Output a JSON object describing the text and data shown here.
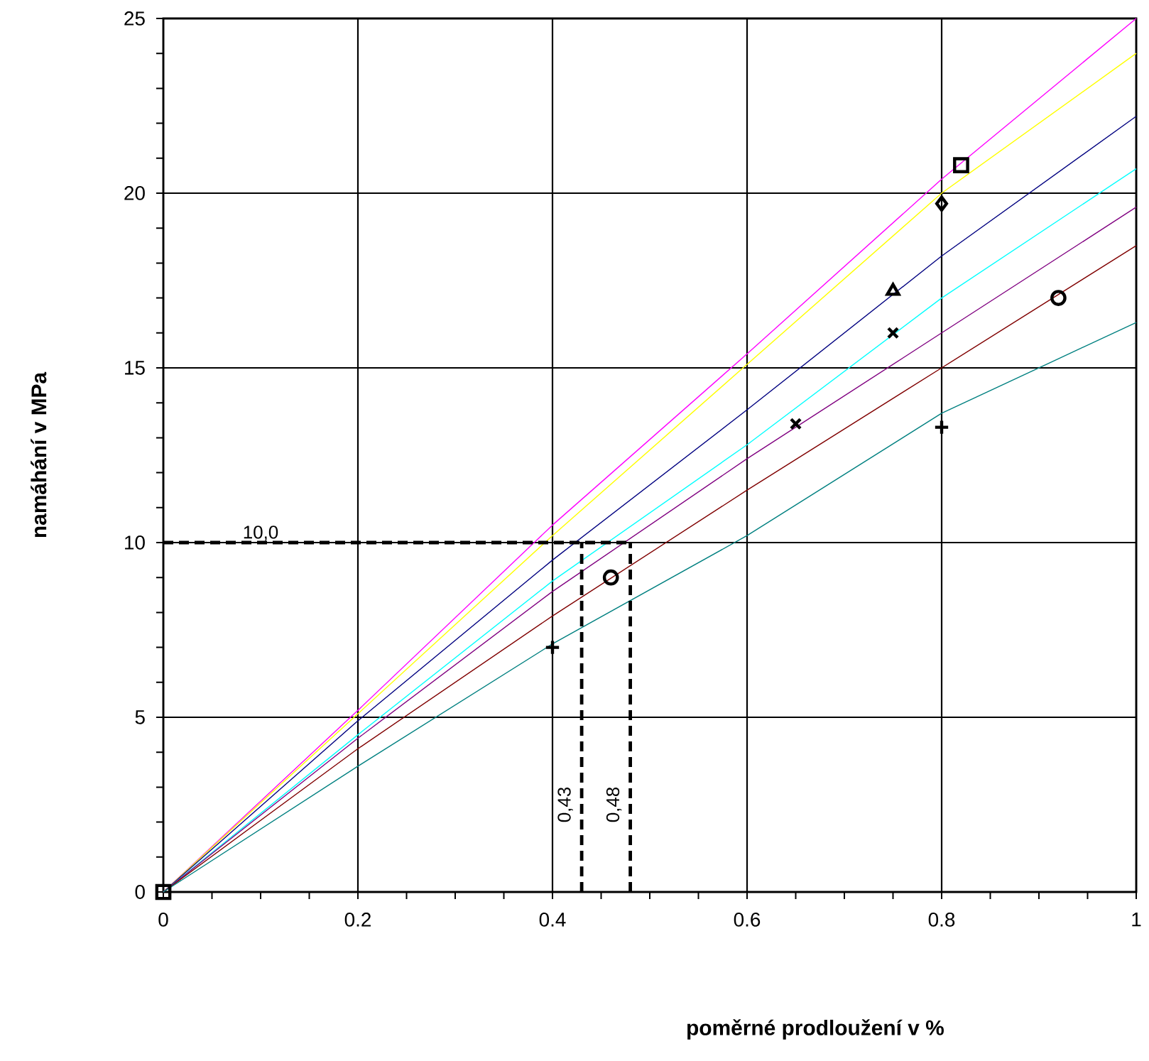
{
  "chart_data": {
    "type": "line",
    "xlabel": "poměrné prodloužení v %",
    "ylabel": "namáhání  v MPa",
    "xlim": [
      0,
      1
    ],
    "ylim": [
      0,
      25
    ],
    "xticks": [
      0,
      0.2,
      0.4,
      0.6,
      0.8,
      1
    ],
    "yticks": [
      0,
      5,
      10,
      15,
      20,
      25
    ],
    "grid": true,
    "series": [
      {
        "color": "#ff00ff",
        "x": [
          0,
          0.2,
          0.4,
          0.6,
          0.8,
          1
        ],
        "values": [
          0,
          5.2,
          10.5,
          15.4,
          20.4,
          25.0
        ]
      },
      {
        "color": "#ffff00",
        "x": [
          0,
          0.2,
          0.4,
          0.6,
          0.8,
          1
        ],
        "values": [
          0,
          5.1,
          10.2,
          15.1,
          20.0,
          24.0
        ]
      },
      {
        "color": "#000080",
        "x": [
          0,
          0.2,
          0.4,
          0.6,
          0.8,
          1
        ],
        "values": [
          0,
          4.9,
          9.5,
          13.8,
          18.2,
          22.2
        ]
      },
      {
        "color": "#00ffff",
        "x": [
          0,
          0.2,
          0.4,
          0.6,
          0.8,
          1
        ],
        "values": [
          0,
          4.5,
          8.9,
          12.8,
          17.0,
          20.7
        ]
      },
      {
        "color": "#800080",
        "x": [
          0,
          0.2,
          0.4,
          0.6,
          0.8,
          1
        ],
        "values": [
          0,
          4.4,
          8.6,
          12.4,
          16.0,
          19.6
        ]
      },
      {
        "color": "#800000",
        "x": [
          0,
          0.2,
          0.4,
          0.6,
          0.8,
          1
        ],
        "values": [
          0,
          4.1,
          7.9,
          11.5,
          15.0,
          18.5
        ]
      },
      {
        "color": "#008080",
        "x": [
          0,
          0.2,
          0.4,
          0.6,
          0.8,
          1
        ],
        "values": [
          0,
          3.6,
          7.1,
          10.2,
          13.7,
          16.3
        ]
      },
      {
        "type": "scatter",
        "marker": "plus",
        "color": "#000000",
        "x": [
          0.4,
          0.8
        ],
        "values": [
          7.0,
          13.3
        ]
      },
      {
        "type": "scatter",
        "marker": "circle",
        "color": "#000000",
        "x": [
          0.46,
          0.92
        ],
        "values": [
          9.0,
          17.0
        ]
      },
      {
        "type": "scatter",
        "marker": "cross",
        "color": "#000000",
        "x": [
          0.65,
          0.75
        ],
        "values": [
          13.4,
          16.0
        ]
      },
      {
        "type": "scatter",
        "marker": "triangle",
        "color": "#000000",
        "x": [
          0.75
        ],
        "values": [
          17.2
        ]
      },
      {
        "type": "scatter",
        "marker": "diamond",
        "color": "#000000",
        "x": [
          0.8
        ],
        "values": [
          19.7
        ]
      },
      {
        "type": "scatter",
        "marker": "square",
        "color": "#000000",
        "x": [
          0.82,
          0
        ],
        "values": [
          20.8,
          0
        ]
      }
    ],
    "ref_lines": [
      {
        "axis": "y",
        "value": 10,
        "label": "10,0",
        "color": "#000000",
        "line_style": "dashed"
      },
      {
        "axis": "x",
        "value": 0.43,
        "label": "0,43",
        "color": "#000000",
        "line_style": "dashed"
      },
      {
        "axis": "x",
        "value": 0.48,
        "label": "0,48",
        "color": "#000000",
        "line_style": "dashed"
      }
    ]
  }
}
